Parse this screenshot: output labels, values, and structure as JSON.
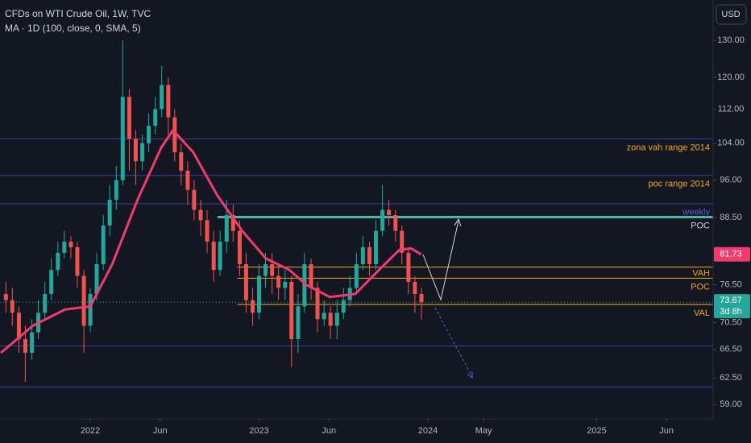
{
  "chart_data": {
    "type": "candlestick",
    "title": "CFDs on WTI Crude Oil, 1W, TVC",
    "subtitle": "MA · 1D (100, close, 0, SMA, 5)",
    "currency": "USD",
    "countdown": "3d 8h",
    "log_scale": true,
    "grid": false,
    "up_color": "#26a69a",
    "down_color": "#ef5350",
    "x": [
      2021.5,
      2021.538,
      2021.577,
      2021.615,
      2021.654,
      2021.692,
      2021.731,
      2021.769,
      2021.808,
      2021.846,
      2021.885,
      2021.923,
      2021.962,
      2022.0,
      2022.038,
      2022.077,
      2022.115,
      2022.154,
      2022.192,
      2022.231,
      2022.269,
      2022.308,
      2022.346,
      2022.385,
      2022.423,
      2022.462,
      2022.5,
      2022.538,
      2022.577,
      2022.615,
      2022.654,
      2022.692,
      2022.731,
      2022.769,
      2022.808,
      2022.846,
      2022.885,
      2022.923,
      2022.962,
      2023.0,
      2023.038,
      2023.077,
      2023.115,
      2023.154,
      2023.192,
      2023.231,
      2023.269,
      2023.308,
      2023.346,
      2023.385,
      2023.423,
      2023.462,
      2023.5,
      2023.538,
      2023.577,
      2023.615,
      2023.654,
      2023.692,
      2023.731,
      2023.769,
      2023.808,
      2023.846,
      2023.885,
      2023.923,
      2023.962
    ],
    "open": [
      75,
      74,
      72,
      68,
      66,
      69,
      72,
      75,
      79,
      82,
      84,
      83,
      78,
      70,
      75,
      80,
      87,
      92,
      96,
      115,
      105,
      100,
      104,
      108,
      112,
      118,
      110,
      102,
      98,
      94,
      90,
      88,
      84,
      79,
      84,
      89,
      86,
      80,
      74,
      72,
      78,
      80,
      78,
      76,
      77,
      68,
      73,
      80,
      76,
      71,
      72,
      70,
      72,
      74,
      76,
      80,
      83,
      80,
      86,
      90,
      89,
      86,
      82,
      77,
      75
    ],
    "high": [
      77,
      76,
      73,
      70,
      71,
      74,
      77,
      81,
      84,
      86,
      85,
      84,
      79,
      76,
      82,
      89,
      95,
      99,
      130,
      117,
      107,
      106,
      111,
      115,
      123,
      120,
      112,
      104,
      100,
      96,
      92,
      90,
      86,
      86,
      92,
      91,
      88,
      82,
      76,
      80,
      82,
      82,
      80,
      79,
      78,
      75,
      82,
      81,
      77,
      74,
      73,
      74,
      76,
      78,
      82,
      85,
      84,
      88,
      95,
      92,
      90,
      87,
      83,
      78,
      76
    ],
    "low": [
      72,
      70,
      66,
      62,
      65,
      68,
      71,
      74,
      78,
      81,
      81,
      76,
      66,
      69,
      74,
      79,
      85,
      90,
      95,
      98,
      95,
      98,
      102,
      106,
      110,
      106,
      100,
      95,
      91,
      88,
      85,
      82,
      77,
      78,
      82,
      84,
      78,
      72,
      70,
      71,
      76,
      75,
      74,
      74,
      64,
      66,
      72,
      74,
      69,
      70,
      68,
      68,
      71,
      73,
      75,
      79,
      78,
      79,
      85,
      87,
      84,
      80,
      75,
      72,
      71
    ],
    "close": [
      74,
      72,
      68,
      66,
      69,
      72,
      75,
      79,
      82,
      84,
      83,
      78,
      70,
      75,
      80,
      87,
      92,
      96,
      115,
      105,
      100,
      104,
      108,
      112,
      118,
      110,
      102,
      98,
      94,
      90,
      88,
      84,
      79,
      84,
      89,
      86,
      80,
      74,
      72,
      78,
      80,
      78,
      76,
      77,
      68,
      73,
      80,
      76,
      71,
      72,
      70,
      72,
      74,
      76,
      80,
      83,
      80,
      86,
      90,
      89,
      86,
      82,
      77,
      75,
      73.67
    ],
    "ma": {
      "color": "#f23a6e",
      "x": [
        2021.47,
        2021.66,
        2021.85,
        2022.0,
        2022.13,
        2022.28,
        2022.42,
        2022.49,
        2022.61,
        2022.75,
        2022.9,
        2023.04,
        2023.18,
        2023.28,
        2023.42,
        2023.57,
        2023.71,
        2023.83,
        2023.9,
        2023.96
      ],
      "values": [
        66,
        70,
        72.5,
        73,
        80,
        92,
        103,
        107,
        102,
        93,
        86,
        81,
        79,
        76.5,
        74.5,
        75,
        79,
        82.5,
        82.8,
        81.73
      ]
    },
    "levels": [
      {
        "value": 105,
        "color": "#3a3fa8",
        "labels": [
          "zona vah range 2014"
        ],
        "label_color": "#f5a623"
      },
      {
        "value": 97,
        "color": "#3a3fa8",
        "labels": [
          "poc range 2014"
        ],
        "label_color": "#f5a623"
      },
      {
        "value": 91.2,
        "color": "#3a3fa8",
        "labels": []
      },
      {
        "value": 88.6,
        "color": "#4db6ac",
        "start": 2022.754,
        "width": 3,
        "labels": [
          "weekly",
          "POC"
        ],
        "label_color": "#d1d4dc"
      },
      {
        "value": 79.5,
        "color": "#f5a623",
        "start": 2022.87,
        "labels": []
      },
      {
        "value": 77.6,
        "color": "#f5a623",
        "start": 2022.87,
        "labels": [
          "VAH",
          "POC"
        ],
        "label_color": "#f5a623"
      },
      {
        "value": 73.3,
        "color": "#f5a623",
        "start": 2022.87,
        "labels": [
          "VAL"
        ],
        "label_color": "#f5a623"
      },
      {
        "value": 67,
        "color": "#3a3fa8",
        "labels": []
      },
      {
        "value": 61.3,
        "color": "#3a3fa8",
        "labels": []
      }
    ],
    "xlim": [
      2021.465,
      2025.69
    ],
    "ylim": [
      57.2,
      141.9
    ],
    "yticks": [
      {
        "value": 59,
        "label": "59.00"
      },
      {
        "value": 62.5,
        "label": "62.50"
      },
      {
        "value": 66.5,
        "label": "66.50"
      },
      {
        "value": 70.5,
        "label": "70.50"
      },
      {
        "value": 76.5,
        "label": "76.50"
      },
      {
        "value": 88.5,
        "label": "88.50"
      },
      {
        "value": 96,
        "label": "96.00"
      },
      {
        "value": 104,
        "label": "104.00"
      },
      {
        "value": 112,
        "label": "112.00"
      },
      {
        "value": 120,
        "label": "120.00"
      },
      {
        "value": 130,
        "label": "130.00"
      }
    ],
    "xticks": [
      2022,
      {
        "value": 2022.414,
        "label": "Jun"
      },
      2023,
      {
        "value": 2023.414,
        "label": "Jun"
      },
      2024,
      {
        "value": 2024.33,
        "label": "May"
      },
      2025,
      {
        "value": 2025.414,
        "label": "Jun"
      }
    ]
  }
}
